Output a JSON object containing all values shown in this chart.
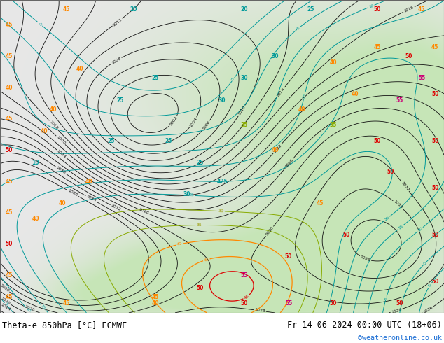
{
  "title_left": "Theta-e 850hPa [°C] ECMWF",
  "title_right": "Fr 14-06-2024 00:00 UTC (18+06)",
  "copyright": "©weatheronline.co.uk",
  "text_color": "#000000",
  "copyright_color": "#1a6dd4",
  "bottom_bar_color": "#ffffff",
  "fig_width": 6.34,
  "fig_height": 4.9,
  "dpi": 100,
  "title_fontsize": 8.5,
  "bottom_bar_height": 0.088
}
